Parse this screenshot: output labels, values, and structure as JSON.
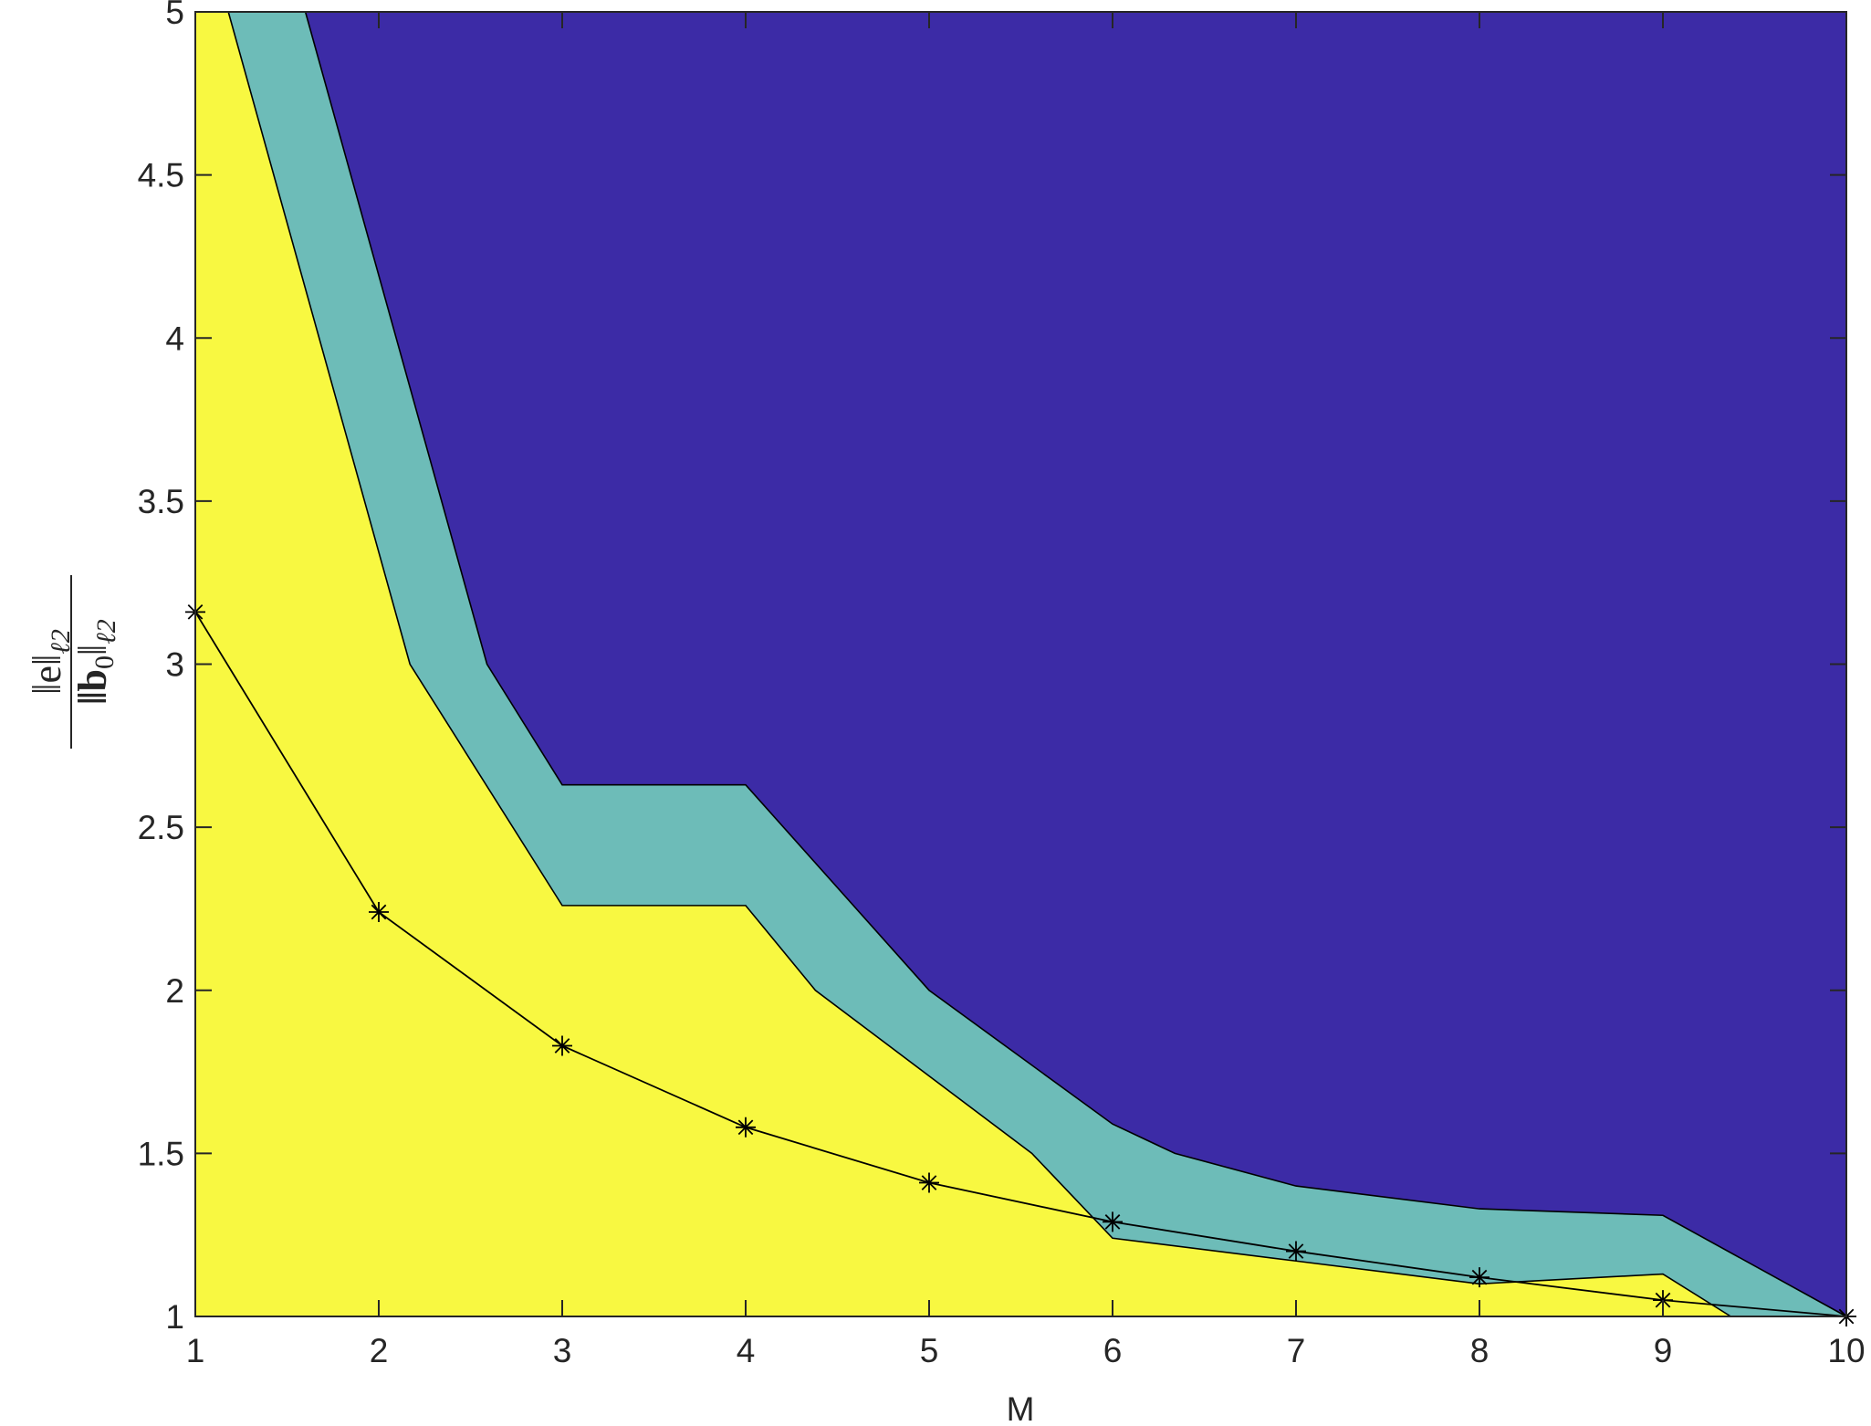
{
  "chart_data": {
    "type": "area",
    "xlabel": "M",
    "ylabel": {
      "numerator": {
        "text": "‖e‖",
        "sub": "ℓ2"
      },
      "denominator": {
        "text": "‖b",
        "text_sub": "0",
        "text_end": "‖",
        "sub": "ℓ2"
      }
    },
    "xlim": [
      1,
      10
    ],
    "xticks": [
      1,
      2,
      3,
      4,
      5,
      6,
      7,
      8,
      9,
      10
    ],
    "ylim": [
      1,
      5
    ],
    "yticks": [
      1,
      1.5,
      2,
      2.5,
      3,
      3.5,
      4,
      4.5,
      5
    ],
    "background": "#3c2ba6",
    "series": [
      {
        "type": "area",
        "color": "#6dbcb8",
        "x": [
          1.6,
          2.59,
          3,
          4,
          5,
          6,
          6.34,
          7,
          8,
          9,
          10
        ],
        "values": [
          5,
          3.0,
          2.63,
          2.63,
          2.0,
          1.59,
          1.5,
          1.4,
          1.33,
          1.31,
          1.0
        ]
      },
      {
        "type": "area",
        "color": "#f8f841",
        "x": [
          1.18,
          2.17,
          3,
          4,
          4.38,
          5.56,
          6,
          7,
          8,
          9,
          9.37,
          10
        ],
        "values": [
          5,
          3.0,
          2.26,
          2.26,
          2.0,
          1.5,
          1.24,
          1.17,
          1.1,
          1.13,
          1.0,
          1.0
        ]
      },
      {
        "type": "line",
        "color": "#000000",
        "marker": "asterisk",
        "x": [
          1,
          2,
          3,
          4,
          5,
          6,
          7,
          8,
          9,
          10
        ],
        "values": [
          3.16,
          2.24,
          1.83,
          1.58,
          1.41,
          1.29,
          1.2,
          1.12,
          1.05,
          1.0
        ]
      }
    ]
  }
}
